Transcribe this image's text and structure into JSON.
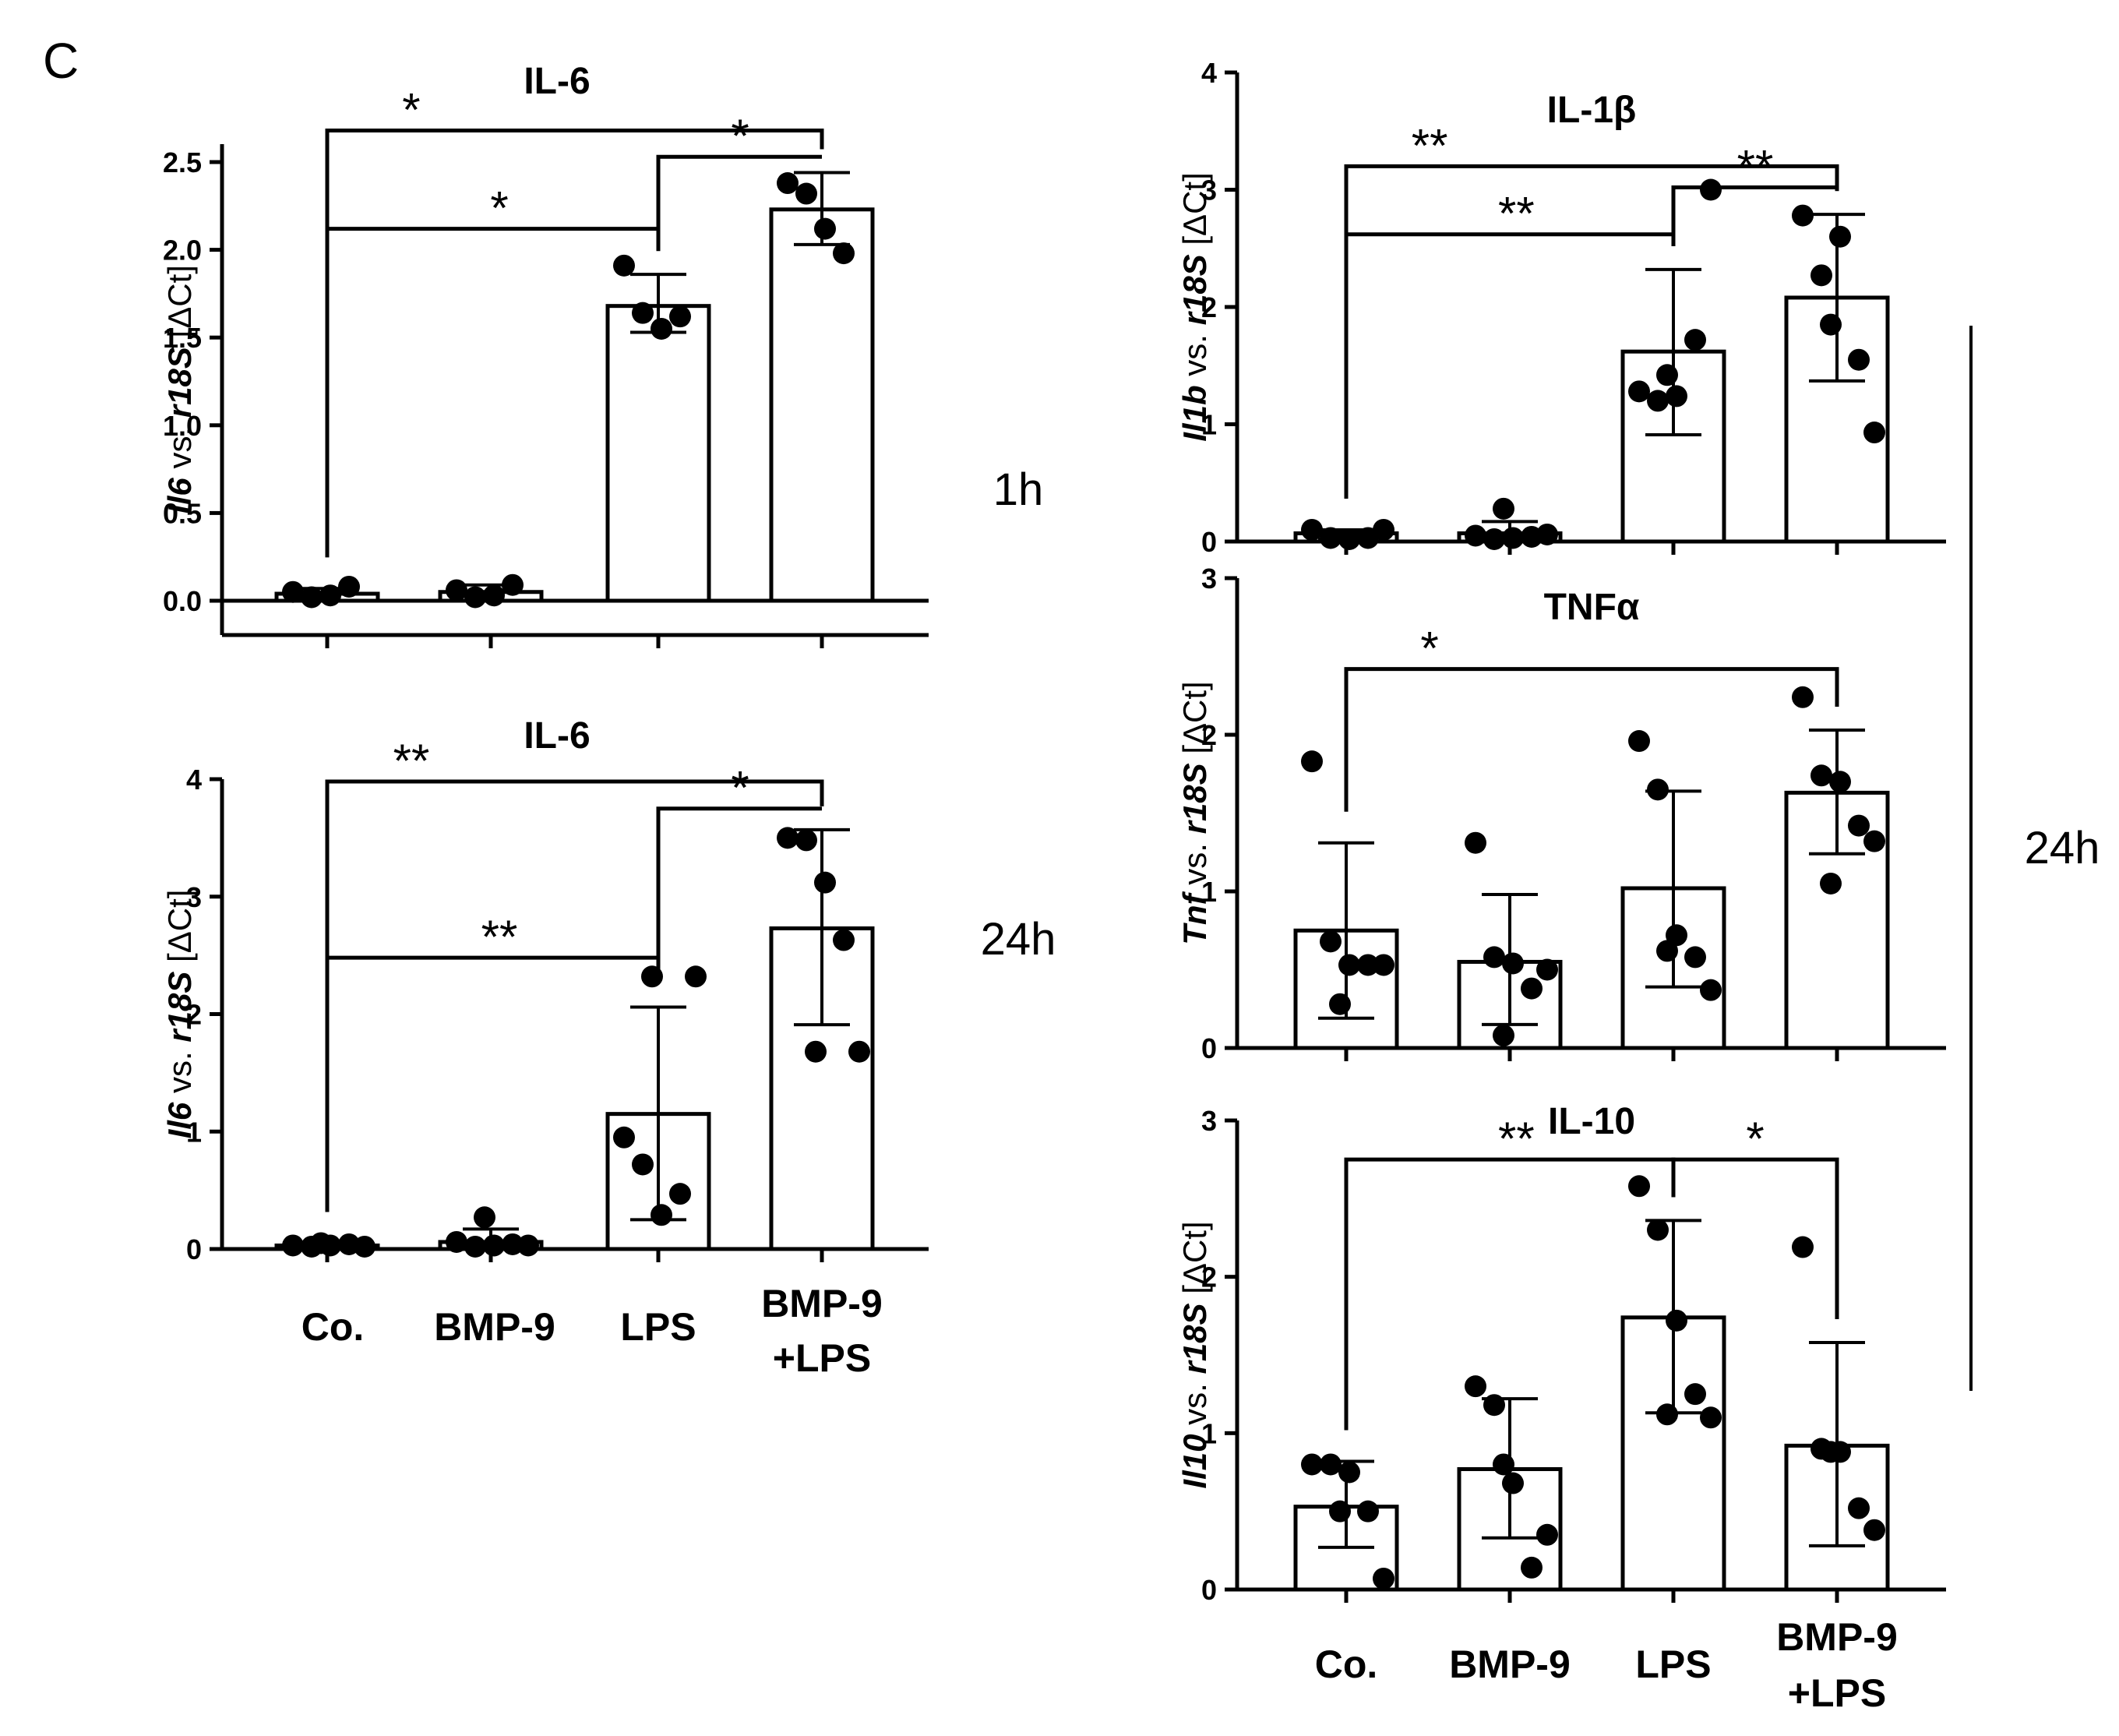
{
  "figure": {
    "panel_letter": "C",
    "time_labels": [
      "1h",
      "24h",
      "24h"
    ],
    "categories_left": [
      "Co.",
      "BMP-9",
      "LPS",
      "BMP-9",
      "+LPS"
    ],
    "categories_right": [
      "Co.",
      "BMP-9",
      "LPS",
      "BMP-9",
      "+LPS"
    ]
  },
  "chart_data": [
    {
      "id": "il6_1h",
      "type": "bar",
      "title": "IL-6",
      "ylabel": {
        "gene": "Il6",
        "vs": " vs. ",
        "ref": "r18S",
        "unit": " [ΔCt]"
      },
      "categories": [
        "Co.",
        "BMP-9",
        "LPS",
        "BMP-9 +LPS"
      ],
      "ylim": [
        -0.2,
        2.6
      ],
      "yticks": [
        0.0,
        0.5,
        1.0,
        1.5,
        2.0,
        2.5
      ],
      "ytick_labels": [
        "0.0",
        "0.5",
        "1.0",
        "1.5",
        "2.0",
        "2.5"
      ],
      "values": [
        0.04,
        0.05,
        1.68,
        2.23
      ],
      "err_low": [
        0.0,
        0.0,
        1.53,
        2.03
      ],
      "err_high": [
        0.07,
        0.09,
        1.86,
        2.44
      ],
      "points": [
        [
          0.05,
          0.02,
          0.03,
          0.08
        ],
        [
          0.06,
          0.02,
          0.03,
          0.09
        ],
        [
          1.91,
          1.64,
          1.55,
          1.62
        ],
        [
          2.38,
          2.32,
          2.12,
          1.98
        ]
      ],
      "significance": [
        {
          "from": 0,
          "to": 3,
          "y": 2.68,
          "label": "*"
        },
        {
          "from": 0,
          "to": 2,
          "y": 2.12,
          "label": "*"
        },
        {
          "from": 2,
          "to": 3,
          "y": 2.53,
          "label": "*"
        }
      ]
    },
    {
      "id": "il6_24h",
      "type": "bar",
      "title": "IL-6",
      "ylabel": {
        "gene": "Il6",
        "vs": " vs. ",
        "ref": "r18S",
        "unit": " [ΔCt]"
      },
      "categories": [
        "Co.",
        "BMP-9",
        "LPS",
        "BMP-9 +LPS"
      ],
      "ylim": [
        0,
        4.0
      ],
      "yticks": [
        0,
        1,
        2,
        3,
        4
      ],
      "ytick_labels": [
        "0",
        "1",
        "2",
        "3",
        "4"
      ],
      "values": [
        0.03,
        0.06,
        1.15,
        2.73
      ],
      "err_low": [
        0.0,
        0.0,
        0.25,
        1.91
      ],
      "err_high": [
        0.05,
        0.17,
        2.06,
        3.57
      ],
      "points": [
        [
          0.03,
          0.02,
          0.03,
          0.04,
          0.02,
          0.05
        ],
        [
          0.06,
          0.02,
          0.03,
          0.04,
          0.03,
          0.27
        ],
        [
          0.95,
          0.72,
          0.29,
          0.47,
          2.32,
          2.32
        ],
        [
          3.5,
          3.48,
          3.12,
          2.63,
          1.68,
          1.68
        ]
      ],
      "significance": [
        {
          "from": 0,
          "to": 3,
          "y": 3.98,
          "label": "**"
        },
        {
          "from": 0,
          "to": 2,
          "y": 2.48,
          "label": "**"
        },
        {
          "from": 2,
          "to": 3,
          "y": 3.75,
          "label": "*"
        }
      ]
    },
    {
      "id": "il1b_24h",
      "type": "bar",
      "title": "IL-1β",
      "ylabel": {
        "gene": "Il1b",
        "vs": " vs. ",
        "ref": "r18S",
        "unit": " [ΔCt]"
      },
      "categories": [
        "Co.",
        "BMP-9",
        "LPS",
        "BMP-9 +LPS"
      ],
      "ylim": [
        0,
        4
      ],
      "yticks": [
        0,
        1,
        2,
        3,
        4
      ],
      "ytick_labels": [
        "0",
        "1",
        "2",
        "3",
        "4"
      ],
      "values": [
        0.07,
        0.07,
        1.62,
        2.08
      ],
      "err_low": [
        0.02,
        0.0,
        0.91,
        1.37
      ],
      "err_high": [
        0.1,
        0.17,
        2.32,
        2.79
      ],
      "points": [
        [
          0.1,
          0.03,
          0.02,
          0.03,
          0.1
        ],
        [
          0.05,
          0.02,
          0.03,
          0.04,
          0.06,
          0.28
        ],
        [
          1.28,
          1.2,
          1.24,
          1.72,
          3.0,
          1.42
        ],
        [
          2.78,
          2.27,
          2.6,
          1.55,
          0.93,
          1.85
        ]
      ],
      "significance": [
        {
          "from": 0,
          "to": 3,
          "y": 3.2,
          "label": "**"
        },
        {
          "from": 0,
          "to": 2,
          "y": 2.62,
          "label": "**"
        },
        {
          "from": 2,
          "to": 3,
          "y": 3.02,
          "label": "**"
        }
      ]
    },
    {
      "id": "tnf_24h",
      "type": "bar",
      "title": "TNFα",
      "ylabel": {
        "gene": "Tnf",
        "vs": " vs. ",
        "ref": "r18S",
        "unit": " [ΔCt]"
      },
      "categories": [
        "Co.",
        "BMP-9",
        "LPS",
        "BMP-9 +LPS"
      ],
      "ylim": [
        0,
        3
      ],
      "yticks": [
        0,
        1,
        2,
        3
      ],
      "ytick_labels": [
        "0",
        "1",
        "2",
        "3"
      ],
      "values": [
        0.75,
        0.55,
        1.02,
        1.63
      ],
      "err_low": [
        0.19,
        0.15,
        0.39,
        1.24
      ],
      "err_high": [
        1.31,
        0.98,
        1.64,
        2.03
      ],
      "points": [
        [
          1.83,
          0.68,
          0.53,
          0.53,
          0.53,
          0.28
        ],
        [
          1.31,
          0.58,
          0.54,
          0.38,
          0.5,
          0.08
        ],
        [
          1.96,
          1.65,
          0.72,
          0.58,
          0.37,
          0.62
        ],
        [
          2.24,
          1.74,
          1.7,
          1.42,
          1.32,
          1.05
        ]
      ],
      "significance": [
        {
          "from": 0,
          "to": 3,
          "y": 2.42,
          "label": "*"
        }
      ]
    },
    {
      "id": "il10_24h",
      "type": "bar",
      "title": "IL-10",
      "ylabel": {
        "gene": "Il10",
        "vs": " vs. ",
        "ref": "r18S",
        "unit": " [ΔCt]"
      },
      "categories": [
        "Co.",
        "BMP-9",
        "LPS",
        "BMP-9 +LPS"
      ],
      "ylim": [
        0,
        3
      ],
      "yticks": [
        0,
        1,
        2,
        3
      ],
      "ytick_labels": [
        "0",
        "1",
        "2",
        "3"
      ],
      "values": [
        0.53,
        0.77,
        1.74,
        0.92
      ],
      "err_low": [
        0.27,
        0.33,
        1.13,
        0.28
      ],
      "err_high": [
        0.82,
        1.22,
        2.36,
        1.58
      ],
      "points": [
        [
          0.8,
          0.8,
          0.75,
          0.5,
          0.07,
          0.5
        ],
        [
          1.3,
          1.18,
          0.68,
          0.14,
          0.35,
          0.8
        ],
        [
          2.58,
          2.3,
          1.72,
          1.25,
          1.1,
          1.12
        ],
        [
          2.19,
          0.9,
          0.88,
          0.52,
          0.38,
          0.88
        ]
      ],
      "significance": [
        {
          "from": 0,
          "to": 2,
          "y": 2.75,
          "label": "**"
        },
        {
          "from": 2,
          "to": 3,
          "y": 2.75,
          "label": "*"
        }
      ]
    }
  ]
}
